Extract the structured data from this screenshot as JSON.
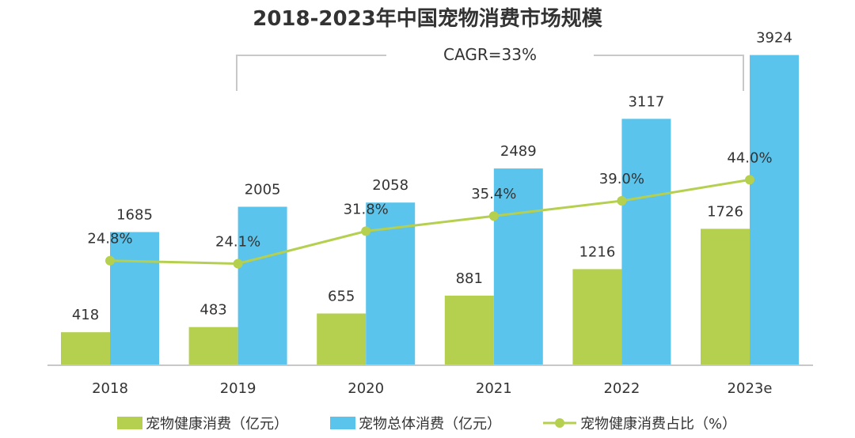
{
  "chart_data": {
    "type": "bar",
    "title": "2018-2023年中国宠物消费市场规模",
    "annotation": "CAGR=33%",
    "categories": [
      "2018",
      "2019",
      "2020",
      "2021",
      "2022",
      "2023e"
    ],
    "series": [
      {
        "name": "宠物健康消费（亿元）",
        "type": "bar",
        "color": "#b5cf4f",
        "values": [
          418,
          483,
          655,
          881,
          1216,
          1726
        ]
      },
      {
        "name": "宠物总体消费（亿元）",
        "type": "bar",
        "color": "#5bc4ec",
        "values": [
          1685,
          2005,
          2058,
          2489,
          3117,
          3924
        ]
      },
      {
        "name": "宠物健康消费占比（%）",
        "type": "line",
        "color": "#b5cf4f",
        "values": [
          24.8,
          24.1,
          31.8,
          35.4,
          39.0,
          44.0
        ],
        "labels": [
          "24.8%",
          "24.1%",
          "31.8%",
          "35.4%",
          "39.0%",
          "44.0%"
        ]
      }
    ],
    "ylim": [
      0,
      4000
    ],
    "line_ylim": [
      0,
      75
    ],
    "legend_position": "bottom",
    "grid": false
  }
}
